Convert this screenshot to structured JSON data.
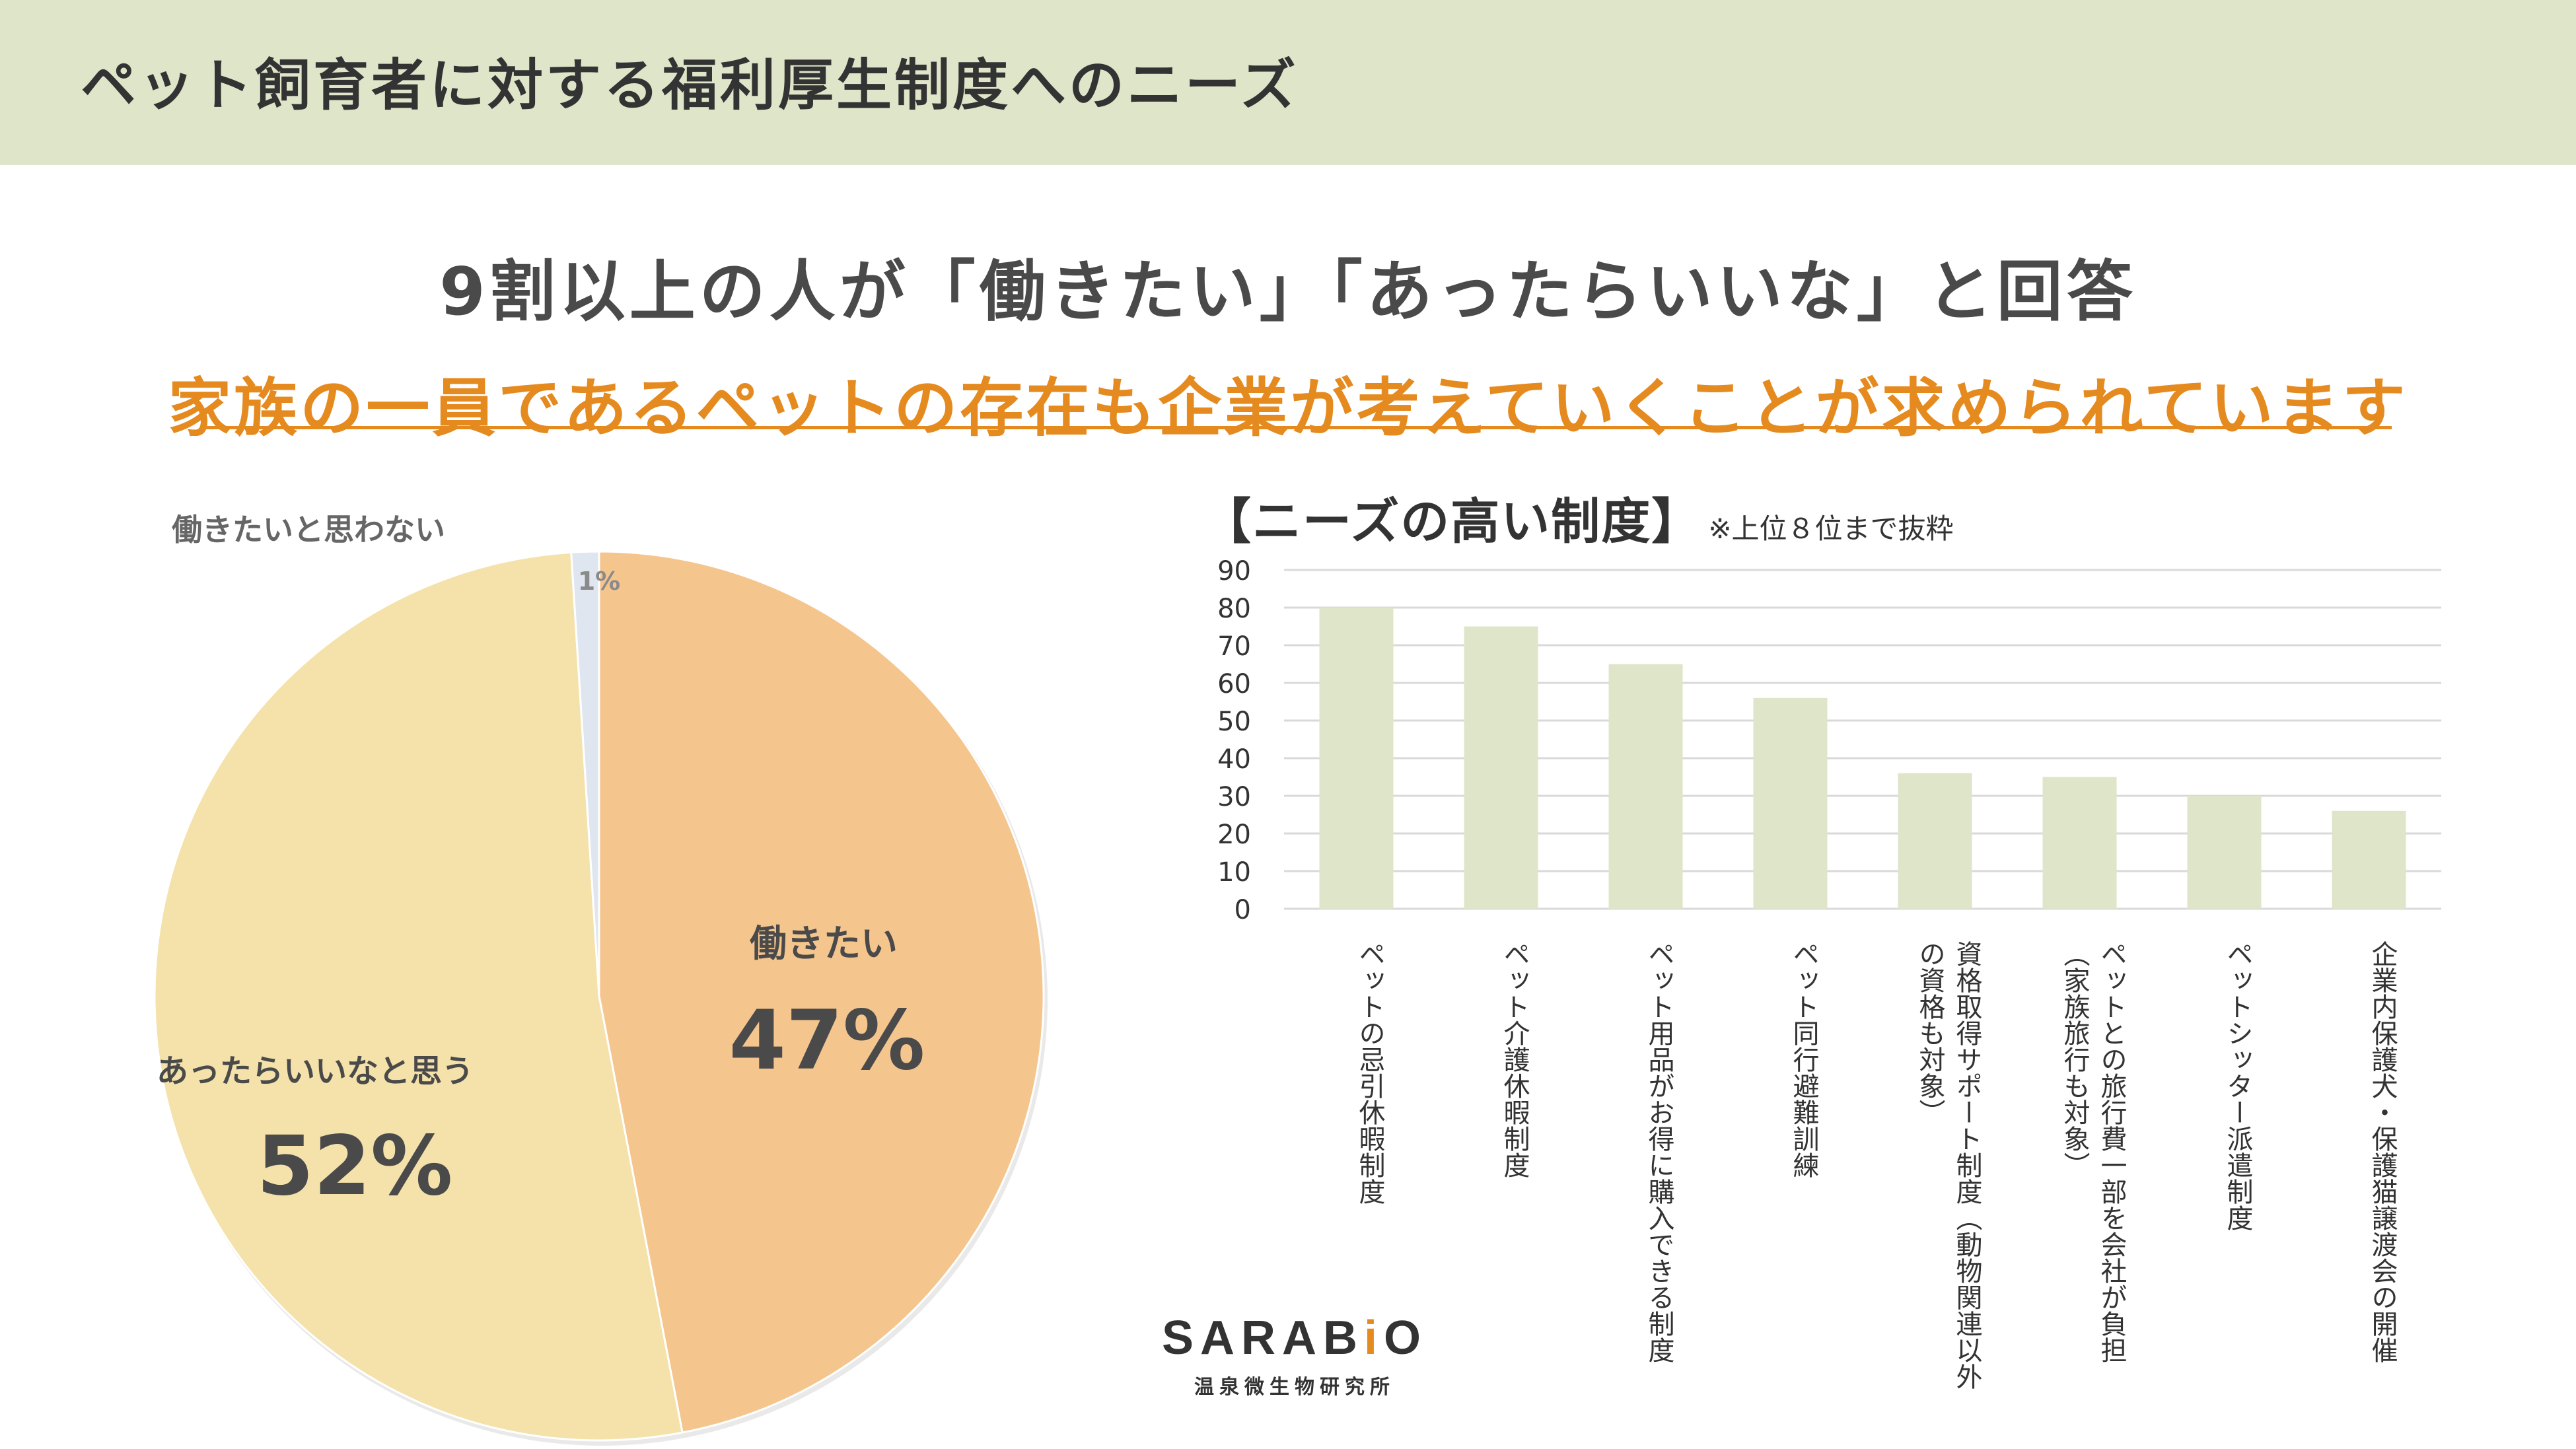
{
  "header": {
    "title": "ペット飼育者に対する福利厚生制度へのニーズ"
  },
  "headline": "9割以上の人が「働きたい」「あったらいいな」と回答",
  "subheadline": "家族の一員であるペットの存在も企業が考えていくことが求められています",
  "bar_title": "【ニーズの高い制度】",
  "bar_note": "※上位８位まで抜粋",
  "logo": {
    "name_pre": "SARAB",
    "name_dot": "i",
    "name_post": "O",
    "sub": "温泉微生物研究所"
  },
  "colors": {
    "header_bg": "#dfe5c9",
    "accent_orange": "#e58a1f",
    "pie_work": "#f5c58e",
    "pie_nice": "#f4e2aa",
    "pie_no": "#dfe6f0",
    "bar_fill": "#dfe5c9"
  },
  "chart_data": [
    {
      "type": "pie",
      "slices": [
        {
          "label": "働きたい",
          "value": 47,
          "display": "47%",
          "color": "#f5c58e"
        },
        {
          "label": "あったらいいなと思う",
          "value": 52,
          "display": "52%",
          "color": "#f4e2aa"
        },
        {
          "label": "働きたいと思わない",
          "value": 1,
          "display": "1%",
          "color": "#dfe6f0"
        }
      ]
    },
    {
      "type": "bar",
      "title": "【ニーズの高い制度】",
      "categories": [
        "ペットの忌引休暇制度",
        "ペット介護休暇制度",
        "ペット用品がお得に購入できる制度",
        "ペット同行避難訓練",
        "資格取得サポート制度（動物関連以外の資格も対象）",
        "ペットとの旅行費一部を会社が負担（家族旅行も対象）",
        "ペットシッター派遣制度",
        "企業内保護犬・保護猫譲渡会の開催"
      ],
      "category_lines": [
        [
          "ペットの忌引休暇制度"
        ],
        [
          "ペット介護休暇制度"
        ],
        [
          "ペット用品がお得に購入できる制度"
        ],
        [
          "ペット同行避難訓練"
        ],
        [
          "資格取得サポート制度（動物関連以外",
          "の資格も対象）"
        ],
        [
          "ペットとの旅行費一部を会社が負担",
          "（家族旅行も対象）"
        ],
        [
          "ペットシッター派遣制度"
        ],
        [
          "企業内保護犬・保護猫譲渡会の開催"
        ]
      ],
      "values": [
        80,
        75,
        65,
        56,
        36,
        35,
        30,
        26
      ],
      "ylim": [
        0,
        90
      ],
      "yticks": [
        "0",
        "10",
        "20",
        "30",
        "40",
        "50",
        "60",
        "70",
        "80",
        "90"
      ],
      "grid": true
    }
  ]
}
